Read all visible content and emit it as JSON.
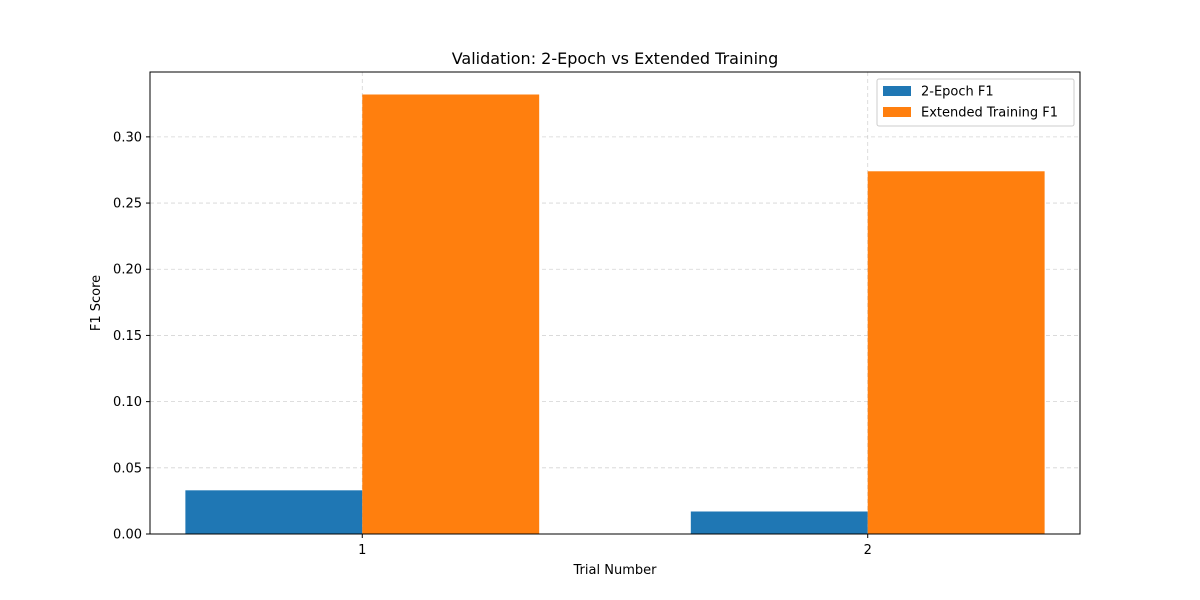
{
  "chart_data": {
    "type": "bar",
    "title": "Validation: 2-Epoch vs Extended Training",
    "xlabel": "Trial Number",
    "ylabel": "F1 Score",
    "categories": [
      "1",
      "2"
    ],
    "series": [
      {
        "name": "2-Epoch F1",
        "values": [
          0.033,
          0.017
        ],
        "color": "#1f77b4"
      },
      {
        "name": "Extended Training F1",
        "values": [
          0.332,
          0.274
        ],
        "color": "#ff7f0e"
      }
    ],
    "ylim": [
      0,
      0.349
    ],
    "yticks": [
      0.0,
      0.05,
      0.1,
      0.15,
      0.2,
      0.25,
      0.3
    ],
    "ytick_labels": [
      "0.00",
      "0.05",
      "0.10",
      "0.15",
      "0.20",
      "0.25",
      "0.30"
    ],
    "grid": true,
    "legend_position": "top-right"
  }
}
